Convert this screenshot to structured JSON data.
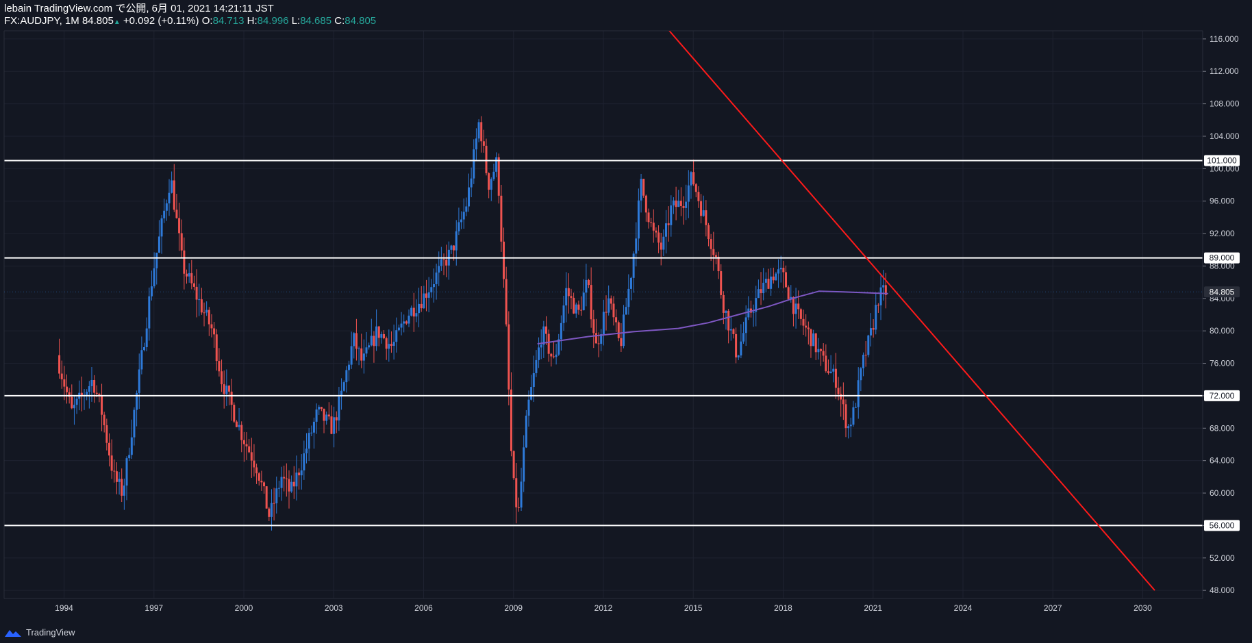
{
  "header": {
    "title": "lebain TradingView.com で公開, 6月 01, 2021 14:21:11 JST",
    "symbol": "FX:AUDJPY, 1M",
    "last": "84.805",
    "change": "+0.092 (+0.11%)",
    "o_label": "O:",
    "o_value": "84.713",
    "h_label": "H:",
    "h_value": "84.996",
    "l_label": "L:",
    "l_value": "84.685",
    "c_label": "C:",
    "c_value": "84.805"
  },
  "footer": {
    "brand": "TradingView"
  },
  "colors": {
    "background": "#131722",
    "up": "#2e7ad9",
    "down": "#ef5350",
    "ma": "#7e57c2",
    "trendline": "#ff1a1a",
    "hline": "#ffffff",
    "grid": "#1e2230"
  },
  "chart_data": {
    "type": "candlestick",
    "symbol": "FX:AUDJPY",
    "interval": "1M",
    "x_range": [
      1992,
      2032
    ],
    "ylim": [
      47,
      117
    ],
    "x_ticks": [
      "1994",
      "1997",
      "2000",
      "2003",
      "2006",
      "2009",
      "2012",
      "2015",
      "2018",
      "2021",
      "2024",
      "2027",
      "2030"
    ],
    "y_ticks": [
      "116.000",
      "112.000",
      "108.000",
      "104.000",
      "100.000",
      "96.000",
      "92.000",
      "88.000",
      "84.000",
      "80.000",
      "76.000",
      "72.000",
      "68.000",
      "64.000",
      "60.000",
      "56.000",
      "52.000",
      "48.000"
    ],
    "last_price": "84.805",
    "horizontal_levels": [
      "101.000",
      "89.000",
      "72.000",
      "56.000"
    ],
    "trendline": {
      "start": {
        "x": 2014.2,
        "y": 117
      },
      "end": {
        "x": 2030.4,
        "y": 48
      }
    },
    "ma_anchor_points": [
      [
        2009.8,
        78.4
      ],
      [
        2011.5,
        79.3
      ],
      [
        2013.0,
        79.9
      ],
      [
        2014.5,
        80.3
      ],
      [
        2015.5,
        81.0
      ],
      [
        2016.5,
        82.0
      ],
      [
        2017.5,
        83.0
      ],
      [
        2018.5,
        84.2
      ],
      [
        2019.2,
        84.9
      ],
      [
        2020.0,
        84.8
      ],
      [
        2021.5,
        84.6
      ]
    ],
    "price_anchor_points": [
      [
        1993.8,
        77
      ],
      [
        1994.3,
        70
      ],
      [
        1995.0,
        74
      ],
      [
        1995.3,
        70
      ],
      [
        1995.7,
        62
      ],
      [
        1996.0,
        60
      ],
      [
        1996.5,
        73
      ],
      [
        1997.0,
        87
      ],
      [
        1997.3,
        93
      ],
      [
        1997.6,
        99
      ],
      [
        1998.0,
        88
      ],
      [
        1998.5,
        84
      ],
      [
        1999.0,
        80
      ],
      [
        1999.3,
        74
      ],
      [
        1999.6,
        71
      ],
      [
        2000.0,
        67
      ],
      [
        2000.5,
        63
      ],
      [
        2000.9,
        57
      ],
      [
        2001.3,
        62
      ],
      [
        2001.6,
        60
      ],
      [
        2002.0,
        64
      ],
      [
        2002.5,
        70
      ],
      [
        2003.0,
        68
      ],
      [
        2003.3,
        72
      ],
      [
        2003.7,
        79
      ],
      [
        2004.0,
        76
      ],
      [
        2004.5,
        80
      ],
      [
        2005.0,
        78
      ],
      [
        2005.5,
        82
      ],
      [
        2006.0,
        84
      ],
      [
        2006.5,
        87
      ],
      [
        2007.0,
        90
      ],
      [
        2007.5,
        96
      ],
      [
        2007.9,
        106
      ],
      [
        2008.2,
        98
      ],
      [
        2008.5,
        101
      ],
      [
        2008.8,
        80
      ],
      [
        2009.0,
        62
      ],
      [
        2009.2,
        57
      ],
      [
        2009.5,
        70
      ],
      [
        2010.0,
        80
      ],
      [
        2010.4,
        76
      ],
      [
        2010.8,
        85
      ],
      [
        2011.2,
        82
      ],
      [
        2011.5,
        86
      ],
      [
        2011.8,
        78
      ],
      [
        2012.2,
        84
      ],
      [
        2012.6,
        78
      ],
      [
        2013.0,
        88
      ],
      [
        2013.3,
        98
      ],
      [
        2013.7,
        92
      ],
      [
        2014.0,
        90
      ],
      [
        2014.3,
        95
      ],
      [
        2014.7,
        96
      ],
      [
        2015.0,
        99
      ],
      [
        2015.4,
        94
      ],
      [
        2015.8,
        89
      ],
      [
        2016.0,
        84
      ],
      [
        2016.5,
        77
      ],
      [
        2016.9,
        82
      ],
      [
        2017.3,
        85
      ],
      [
        2017.7,
        87
      ],
      [
        2018.0,
        87
      ],
      [
        2018.5,
        82
      ],
      [
        2019.0,
        79
      ],
      [
        2019.4,
        76
      ],
      [
        2019.8,
        74
      ],
      [
        2020.2,
        68
      ],
      [
        2020.4,
        70
      ],
      [
        2020.7,
        76
      ],
      [
        2021.0,
        80
      ],
      [
        2021.2,
        84
      ],
      [
        2021.4,
        84.8
      ]
    ]
  }
}
